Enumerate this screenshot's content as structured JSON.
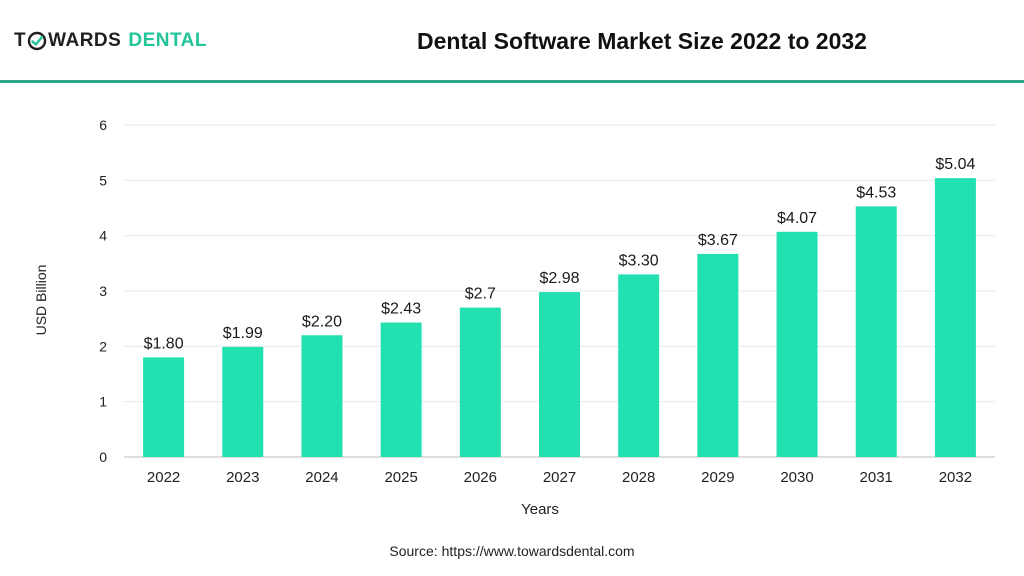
{
  "logo": {
    "text_left": "T",
    "text_mid": "WARDS",
    "text_right": "DENTAL",
    "icon": "tooth-check-icon",
    "color_accent": "#22c49a"
  },
  "header": {
    "title": "Dental Software Market Size 2022 to 2032"
  },
  "footer": {
    "source_label": "Source:",
    "source_url": "https://www.towardsdental.com"
  },
  "colors": {
    "bar": "#22e0b0",
    "rule": "#2aa58a",
    "grid": "#e8e8e8"
  },
  "chart_data": {
    "type": "bar",
    "categories": [
      "2022",
      "2023",
      "2024",
      "2025",
      "2026",
      "2027",
      "2028",
      "2029",
      "2030",
      "2031",
      "2032"
    ],
    "values": [
      1.8,
      1.99,
      2.2,
      2.43,
      2.7,
      2.98,
      3.3,
      3.67,
      4.07,
      4.53,
      5.04
    ],
    "data_labels": [
      "$1.80",
      "$1.99",
      "$2.20",
      "$2.43",
      "$2.7",
      "$2.98",
      "$3.30",
      "$3.67",
      "$4.07",
      "$4.53",
      "$5.04"
    ],
    "title": "Dental Software Market Size 2022 to 2032",
    "xlabel": "Years",
    "ylabel": "USD Billion",
    "ylim": [
      0,
      6
    ],
    "yticks": [
      0,
      1,
      2,
      3,
      4,
      5,
      6
    ],
    "grid": true,
    "legend": "none"
  }
}
